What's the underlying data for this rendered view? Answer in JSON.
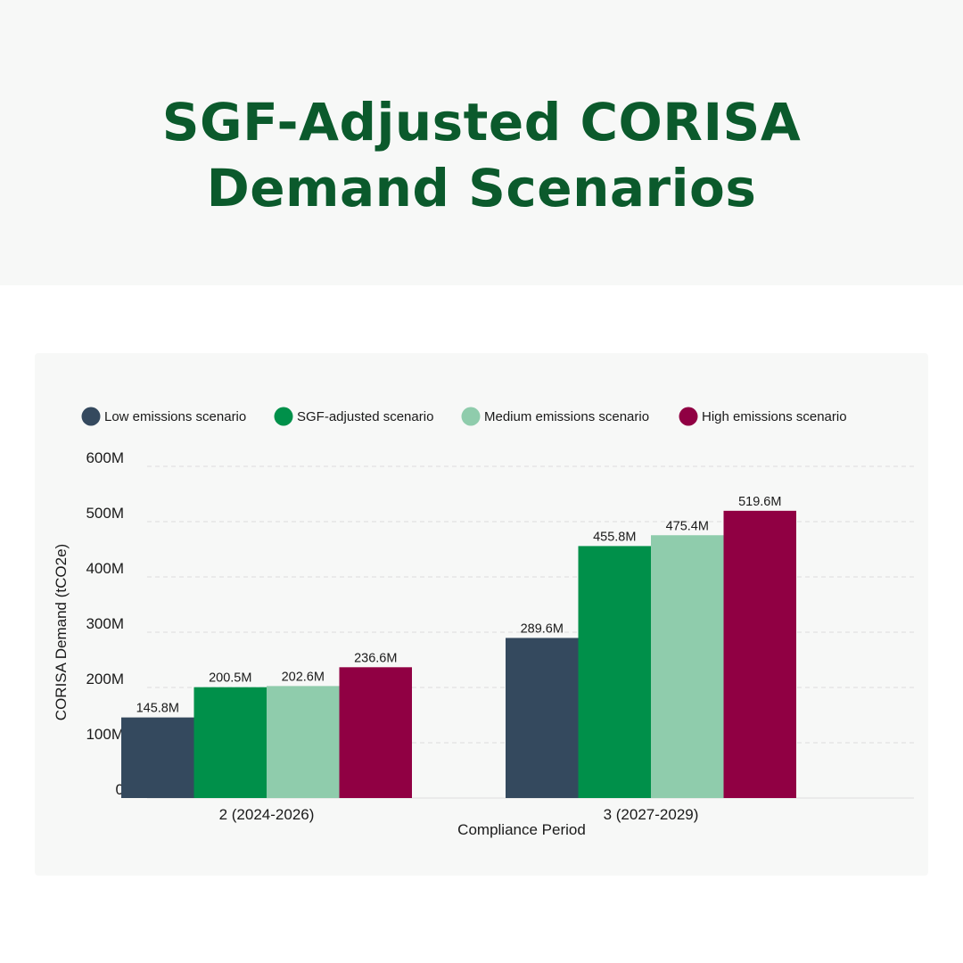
{
  "title": "SGF-Adjusted CORISA Demand Scenarios",
  "chart_data": {
    "type": "bar",
    "title": "SGF-Adjusted CORISA Demand Scenarios",
    "xlabel": "Compliance Period",
    "ylabel": "CORISA Demand (tCO2e)",
    "categories": [
      "2 (2024-2026)",
      "3 (2027-2029)"
    ],
    "ylim": [
      0,
      600
    ],
    "yticks": [
      0,
      100,
      200,
      300,
      400,
      500,
      600
    ],
    "ytick_labels": [
      "0",
      "100M",
      "200M",
      "300M",
      "400M",
      "500M",
      "600M"
    ],
    "grid": "horizontal dashed",
    "legend_position": "top-left",
    "series": [
      {
        "name": "Low emissions scenario",
        "color": "#34495e",
        "values": [
          145.8,
          289.6
        ],
        "labels": [
          "145.8M",
          "289.6M"
        ]
      },
      {
        "name": "SGF-adjusted scenario",
        "color": "#00904a",
        "values": [
          200.5,
          455.8
        ],
        "labels": [
          "200.5M",
          "455.8M"
        ]
      },
      {
        "name": "Medium emissions scenario",
        "color": "#8fccac",
        "values": [
          202.6,
          475.4
        ],
        "labels": [
          "202.6M",
          "475.4M"
        ]
      },
      {
        "name": "High emissions scenario",
        "color": "#900043",
        "values": [
          236.6,
          519.6
        ],
        "labels": [
          "236.6M",
          "519.6M"
        ]
      }
    ]
  }
}
